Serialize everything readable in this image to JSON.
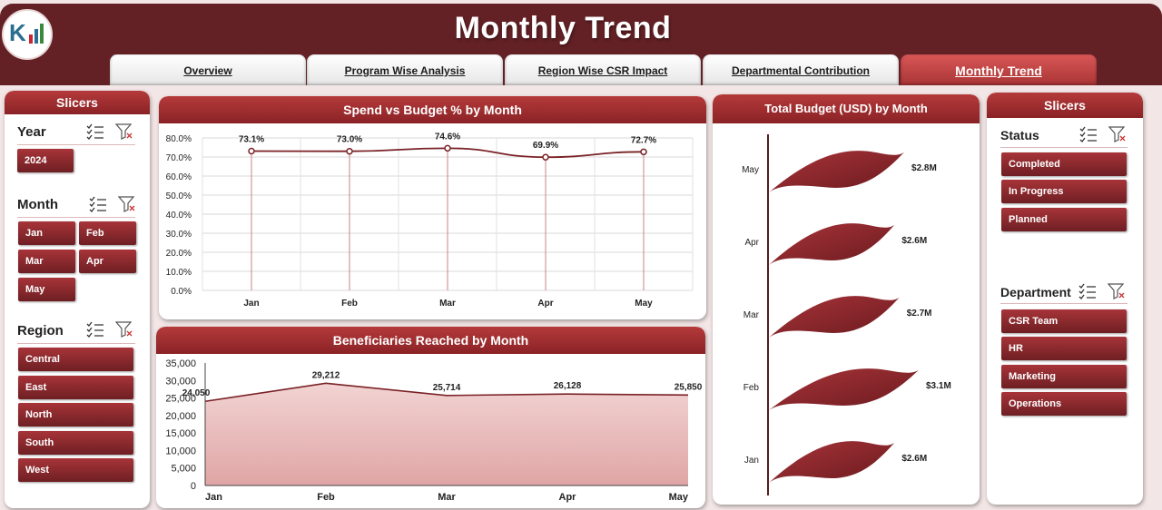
{
  "header": {
    "title": "Monthly Trend"
  },
  "tabs": [
    {
      "label": "Overview"
    },
    {
      "label": "Program Wise Analysis"
    },
    {
      "label": "Region Wise CSR Impact"
    },
    {
      "label": "Departmental Contribution"
    },
    {
      "label": "Monthly Trend",
      "active": true
    }
  ],
  "left_slicers": {
    "title": "Slicers",
    "year": {
      "title": "Year",
      "items": [
        "2024"
      ]
    },
    "month": {
      "title": "Month",
      "items": [
        "Jan",
        "Feb",
        "Mar",
        "Apr",
        "May"
      ]
    },
    "region": {
      "title": "Region",
      "items": [
        "Central",
        "East",
        "North",
        "South",
        "West"
      ]
    }
  },
  "right_slicers": {
    "title": "Slicers",
    "status": {
      "title": "Status",
      "items": [
        "Completed",
        "In Progress",
        "Planned"
      ]
    },
    "department": {
      "title": "Department",
      "items": [
        "CSR Team",
        "HR",
        "Marketing",
        "Operations"
      ]
    }
  },
  "icons": [
    "multi-select-icon",
    "clear-filter-icon"
  ],
  "colors": {
    "brand": "#632125",
    "accent": "#8a2226",
    "area_fill": "#e8b4b4"
  },
  "chart_data": [
    {
      "type": "line",
      "title": "Spend vs Budget %  by Month",
      "categories": [
        "Jan",
        "Feb",
        "Mar",
        "Apr",
        "May"
      ],
      "values": [
        73.1,
        73.0,
        74.6,
        69.9,
        72.7
      ],
      "data_labels": [
        "73.1%",
        "73.0%",
        "74.6%",
        "69.9%",
        "72.7%"
      ],
      "ylim": [
        0,
        80
      ],
      "yticks": [
        "0.0%",
        "10.0%",
        "20.0%",
        "30.0%",
        "40.0%",
        "50.0%",
        "60.0%",
        "70.0%",
        "80.0%"
      ],
      "grid": true
    },
    {
      "type": "area",
      "title": "Beneficiaries Reached by Month",
      "categories": [
        "Jan",
        "Feb",
        "Mar",
        "Apr",
        "May"
      ],
      "values": [
        24050,
        29212,
        25714,
        26128,
        25850
      ],
      "data_labels": [
        "24,050",
        "29,212",
        "25,714",
        "26,128",
        "25,850"
      ],
      "ylim": [
        0,
        35000
      ],
      "yticks": [
        "0",
        "5,000",
        "10,000",
        "15,000",
        "20,000",
        "25,000",
        "30,000",
        "35,000"
      ]
    },
    {
      "type": "bar",
      "orientation": "horizontal",
      "title": "Total Budget (USD) by Month",
      "categories": [
        "May",
        "Apr",
        "Mar",
        "Feb",
        "Jan"
      ],
      "values": [
        2.8,
        2.6,
        2.7,
        3.1,
        2.6
      ],
      "data_labels": [
        "$2.8M",
        "$2.6M",
        "$2.7M",
        "$3.1M",
        "$2.6M"
      ],
      "unit": "M USD"
    }
  ]
}
